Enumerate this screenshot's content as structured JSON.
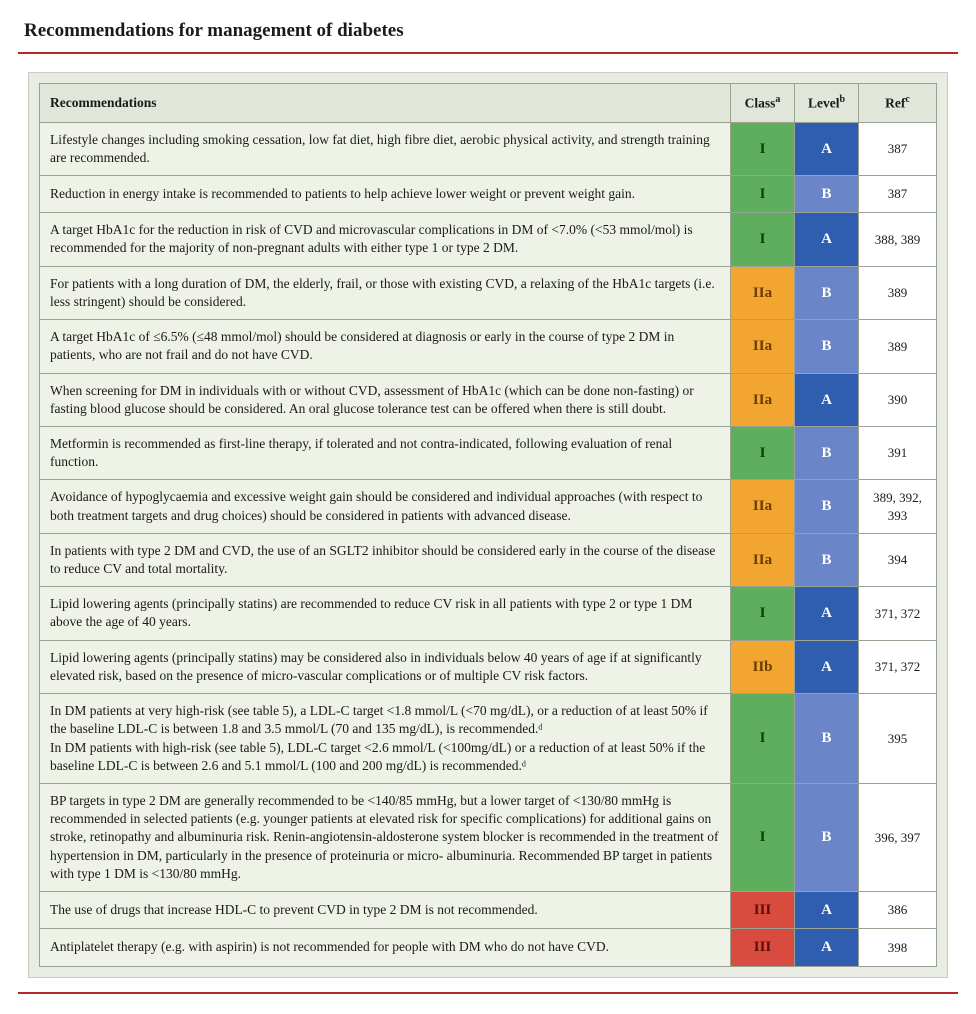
{
  "title": "Recommendations for management of diabetes",
  "columns": {
    "rec": {
      "label": "Recommendations",
      "sup": ""
    },
    "class": {
      "label": "Class",
      "sup": "a"
    },
    "level": {
      "label": "Level",
      "sup": "b"
    },
    "ref": {
      "label": "Ref",
      "sup": "c"
    }
  },
  "class_colors": {
    "I": "#5eae5e",
    "IIa": "#f2a531",
    "IIb": "#f2a531",
    "III": "#d94b3f"
  },
  "level_colors": {
    "A": "#2f5db0",
    "B": "#6a86c8",
    "C": "#8fa5d6"
  },
  "level_text_color": "#ffffff",
  "class_text_colors": {
    "I": "#0b3d0b",
    "IIa": "#6b3c00",
    "IIb": "#6b3c00",
    "III": "#5a0f0a"
  },
  "rows": [
    {
      "text": "Lifestyle changes including smoking cessation, low fat diet, high fibre diet, aerobic physical activity, and strength training are recommended.",
      "class": "I",
      "level": "A",
      "ref": "387"
    },
    {
      "text": "Reduction in energy intake is recommended to patients to help achieve lower weight or prevent weight gain.",
      "class": "I",
      "level": "B",
      "ref": "387"
    },
    {
      "text": "A target HbA1c for the reduction in risk of CVD and microvascular complications in DM of <7.0% (<53 mmol/mol) is recommended for the majority of non-pregnant adults with either type 1 or type 2 DM.",
      "class": "I",
      "level": "A",
      "ref": "388, 389"
    },
    {
      "text": "For patients with a long duration of DM, the elderly, frail, or those with existing CVD, a relaxing of the HbA1c targets (i.e. less stringent) should be considered.",
      "class": "IIa",
      "level": "B",
      "ref": "389"
    },
    {
      "text": "A target HbA1c of ≤6.5% (≤48 mmol/mol) should be considered at diagnosis or early in the course of type 2 DM in patients, who are not frail and do not have CVD.",
      "class": "IIa",
      "level": "B",
      "ref": "389"
    },
    {
      "text": "When screening for DM in individuals with or without CVD, assessment of HbA1c (which can be done non-fasting) or fasting blood glucose should be considered. An oral glucose tolerance test can be offered when there is still doubt.",
      "class": "IIa",
      "level": "A",
      "ref": "390"
    },
    {
      "text": "Metformin is recommended as first-line therapy, if tolerated and not contra-indicated, following evaluation of renal function.",
      "class": "I",
      "level": "B",
      "ref": "391"
    },
    {
      "text": "Avoidance of hypoglycaemia and excessive weight gain should be considered and individual approaches (with respect to both treatment targets and drug choices) should be considered in patients with advanced disease.",
      "class": "IIa",
      "level": "B",
      "ref": "389, 392, 393"
    },
    {
      "text": "In patients with type 2 DM and CVD, the use of an SGLT2 inhibitor should be considered early in the course of the disease to reduce CV and total mortality.",
      "class": "IIa",
      "level": "B",
      "ref": "394"
    },
    {
      "text": "Lipid lowering agents (principally statins) are recommended to reduce CV risk in all patients with type 2 or type 1 DM above the age of 40 years.",
      "class": "I",
      "level": "A",
      "ref": "371, 372"
    },
    {
      "text": "Lipid lowering agents (principally statins) may be considered also in individuals below 40 years of age if at significantly elevated risk, based on the presence of micro-vascular complications or of multiple CV risk factors.",
      "class": "IIb",
      "level": "A",
      "ref": "371, 372"
    },
    {
      "text": "In DM patients at very high-risk (see table 5), a LDL-C target <1.8 mmol/L (<70 mg/dL), or a reduction of at least 50% if the baseline LDL-C is between 1.8 and 3.5 mmol/L (70 and 135 mg/dL), is recommended.ᵈ\nIn DM patients with high-risk (see table 5), LDL-C target <2.6 mmol/L (<100mg/dL) or a reduction of at least 50% if the baseline LDL-C is between 2.6 and 5.1 mmol/L (100 and 200 mg/dL) is recommended.ᵈ",
      "class": "I",
      "level": "B",
      "ref": "395"
    },
    {
      "text": "BP targets in type 2 DM are generally recommended to be <140/85 mmHg, but a lower target of <130/80 mmHg is recommended in selected patients (e.g. younger patients at elevated risk for specific complications) for additional gains on stroke, retinopathy and albuminuria risk. Renin-angiotensin-aldosterone system blocker is recommended in the treatment of hypertension in DM, particularly in the presence of proteinuria or micro- albuminuria. Recommended BP target in patients with type 1 DM is <130/80 mmHg.",
      "class": "I",
      "level": "B",
      "ref": "396, 397"
    },
    {
      "text": "The use of drugs that increase HDL-C to prevent CVD in type 2 DM is not recommended.",
      "class": "III",
      "level": "A",
      "ref": "386"
    },
    {
      "text": "Antiplatelet therapy (e.g. with aspirin) is not recommended for people with DM who do not have CVD.",
      "class": "III",
      "level": "A",
      "ref": "398"
    }
  ]
}
